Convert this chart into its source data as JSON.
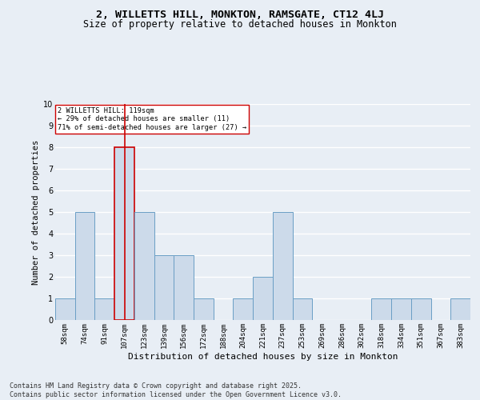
{
  "title": "2, WILLETTS HILL, MONKTON, RAMSGATE, CT12 4LJ",
  "subtitle": "Size of property relative to detached houses in Monkton",
  "xlabel": "Distribution of detached houses by size in Monkton",
  "ylabel": "Number of detached properties",
  "bin_labels": [
    "58sqm",
    "74sqm",
    "91sqm",
    "107sqm",
    "123sqm",
    "139sqm",
    "156sqm",
    "172sqm",
    "188sqm",
    "204sqm",
    "221sqm",
    "237sqm",
    "253sqm",
    "269sqm",
    "286sqm",
    "302sqm",
    "318sqm",
    "334sqm",
    "351sqm",
    "367sqm",
    "383sqm"
  ],
  "bar_values": [
    1,
    5,
    1,
    8,
    5,
    3,
    3,
    1,
    0,
    1,
    2,
    5,
    1,
    0,
    0,
    0,
    1,
    1,
    1,
    0,
    1
  ],
  "bar_color": "#ccdaea",
  "bar_edgecolor": "#6a9ec5",
  "highlight_bin": 3,
  "highlight_line_color": "#cc0000",
  "annotation_text": "2 WILLETTS HILL: 119sqm\n← 29% of detached houses are smaller (11)\n71% of semi-detached houses are larger (27) →",
  "annotation_box_edgecolor": "#cc0000",
  "annotation_box_facecolor": "#ffffff",
  "ylim": [
    0,
    10
  ],
  "yticks": [
    0,
    1,
    2,
    3,
    4,
    5,
    6,
    7,
    8,
    9,
    10
  ],
  "footer_text": "Contains HM Land Registry data © Crown copyright and database right 2025.\nContains public sector information licensed under the Open Government Licence v3.0.",
  "bg_color": "#e8eef5",
  "plot_bg_color": "#e8eef5",
  "grid_color": "#ffffff",
  "title_fontsize": 9.5,
  "subtitle_fontsize": 8.5,
  "axis_label_fontsize": 7.5,
  "tick_fontsize": 6.5,
  "footer_fontsize": 6
}
